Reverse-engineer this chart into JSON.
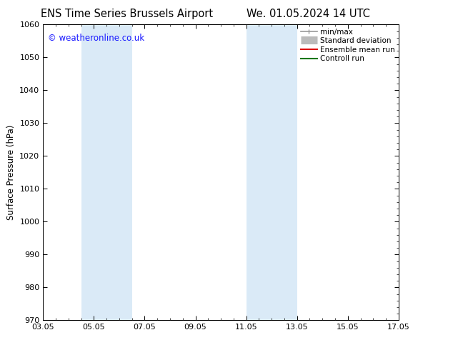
{
  "title1": "ENS Time Series Brussels Airport",
  "title2": "We. 01.05.2024 14 UTC",
  "ylabel": "Surface Pressure (hPa)",
  "ylim": [
    970,
    1060
  ],
  "yticks": [
    970,
    980,
    990,
    1000,
    1010,
    1020,
    1030,
    1040,
    1050,
    1060
  ],
  "xlim_start": 0.0,
  "xlim_end": 14.0,
  "xtick_positions": [
    0,
    2,
    4,
    6,
    8,
    10,
    12,
    14
  ],
  "xtick_labels": [
    "03.05",
    "05.05",
    "07.05",
    "09.05",
    "11.05",
    "13.05",
    "15.05",
    "17.05"
  ],
  "shaded_bands": [
    {
      "x_start": 1.5,
      "x_end": 3.5
    },
    {
      "x_start": 8.0,
      "x_end": 10.0
    }
  ],
  "shaded_color": "#daeaf7",
  "watermark_text": "© weatheronline.co.uk",
  "watermark_color": "#1a1aff",
  "watermark_fontsize": 8.5,
  "legend_entries": [
    {
      "label": "min/max",
      "color": "#999999",
      "lw": 1.2,
      "type": "minmax"
    },
    {
      "label": "Standard deviation",
      "color": "#bbbbbb",
      "lw": 8,
      "type": "stddev"
    },
    {
      "label": "Ensemble mean run",
      "color": "#dd0000",
      "lw": 1.5,
      "type": "line"
    },
    {
      "label": "Controll run",
      "color": "#007700",
      "lw": 1.5,
      "type": "line"
    }
  ],
  "bg_color": "#ffffff",
  "title_fontsize": 10.5,
  "axis_label_fontsize": 8.5,
  "tick_fontsize": 8,
  "legend_fontsize": 7.5
}
